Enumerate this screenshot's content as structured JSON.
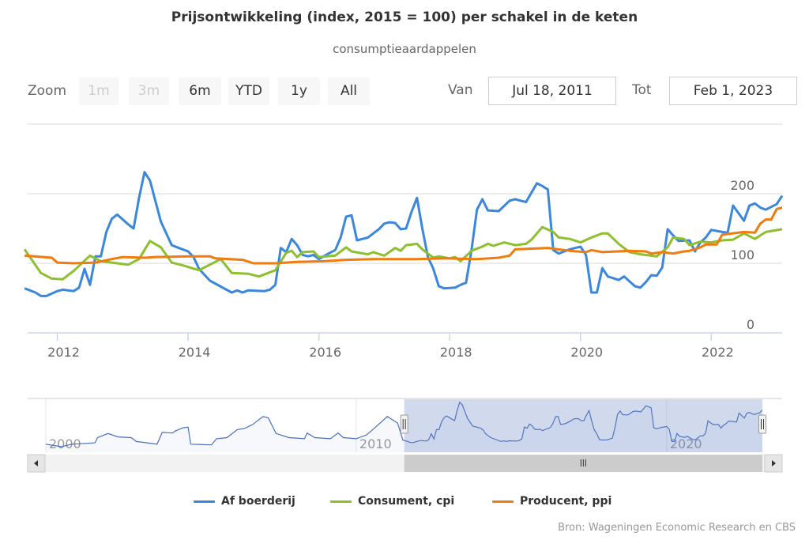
{
  "chart_data": {
    "type": "line",
    "title": "Prijsontwikkeling (index, 2015 = 100) per schakel in de keten",
    "subtitle": "consumptieaardappelen",
    "x_range": [
      "2011-07-18",
      "2023-02-01"
    ],
    "ylim": [
      0,
      300
    ],
    "y_ticks": [
      0,
      100,
      200
    ],
    "x_ticks": [
      "2012",
      "2014",
      "2016",
      "2018",
      "2020",
      "2022"
    ],
    "grid": true,
    "legend": "bottom",
    "series": [
      {
        "name": "Af boerderij",
        "color": "#3a87dc",
        "points": [
          [
            "2011-07",
            64
          ],
          [
            "2011-09",
            58
          ],
          [
            "2011-10",
            53
          ],
          [
            "2011-11",
            53
          ],
          [
            "2012-01",
            60
          ],
          [
            "2012-02",
            62
          ],
          [
            "2012-04",
            60
          ],
          [
            "2012-05",
            65
          ],
          [
            "2012-06",
            92
          ],
          [
            "2012-07",
            69
          ],
          [
            "2012-08",
            110
          ],
          [
            "2012-09",
            110
          ],
          [
            "2012-10",
            145
          ],
          [
            "2012-11",
            164
          ],
          [
            "2012-12",
            170
          ],
          [
            "2013-02",
            156
          ],
          [
            "2013-03",
            150
          ],
          [
            "2013-04",
            194
          ],
          [
            "2013-05",
            231
          ],
          [
            "2013-06",
            219
          ],
          [
            "2013-08",
            160
          ],
          [
            "2013-09",
            143
          ],
          [
            "2013-10",
            126
          ],
          [
            "2013-11",
            123
          ],
          [
            "2014-01",
            117
          ],
          [
            "2014-02",
            109
          ],
          [
            "2014-03",
            92
          ],
          [
            "2014-05",
            75
          ],
          [
            "2014-09",
            58
          ],
          [
            "2014-10",
            61
          ],
          [
            "2014-11",
            58
          ],
          [
            "2014-12",
            61
          ],
          [
            "2015-03",
            60
          ],
          [
            "2015-04",
            62
          ],
          [
            "2015-05",
            69
          ],
          [
            "2015-06",
            122
          ],
          [
            "2015-07",
            116
          ],
          [
            "2015-08",
            135
          ],
          [
            "2015-09",
            126
          ],
          [
            "2015-10",
            112
          ],
          [
            "2015-11",
            110
          ],
          [
            "2015-12",
            112
          ],
          [
            "2016-01",
            106
          ],
          [
            "2016-03",
            115
          ],
          [
            "2016-04",
            119
          ],
          [
            "2016-05",
            137
          ],
          [
            "2016-06",
            167
          ],
          [
            "2016-07",
            169
          ],
          [
            "2016-08",
            133
          ],
          [
            "2016-09",
            135
          ],
          [
            "2016-10",
            137
          ],
          [
            "2016-12",
            149
          ],
          [
            "2017-01",
            157
          ],
          [
            "2017-02",
            159
          ],
          [
            "2017-03",
            158
          ],
          [
            "2017-04",
            149
          ],
          [
            "2017-05",
            150
          ],
          [
            "2017-06",
            174
          ],
          [
            "2017-07",
            194
          ],
          [
            "2017-08",
            149
          ],
          [
            "2017-09",
            109
          ],
          [
            "2017-10",
            92
          ],
          [
            "2017-11",
            67
          ],
          [
            "2017-12",
            64
          ],
          [
            "2018-02",
            65
          ],
          [
            "2018-03",
            69
          ],
          [
            "2018-04",
            72
          ],
          [
            "2018-05",
            119
          ],
          [
            "2018-06",
            177
          ],
          [
            "2018-07",
            192
          ],
          [
            "2018-08",
            176
          ],
          [
            "2018-10",
            175
          ],
          [
            "2018-12",
            190
          ],
          [
            "2019-01",
            192
          ],
          [
            "2019-03",
            188
          ],
          [
            "2019-05",
            215
          ],
          [
            "2019-06",
            211
          ],
          [
            "2019-07",
            206
          ],
          [
            "2019-08",
            119
          ],
          [
            "2019-09",
            114
          ],
          [
            "2019-11",
            120
          ],
          [
            "2020-01",
            124
          ],
          [
            "2020-02",
            112
          ],
          [
            "2020-03",
            58
          ],
          [
            "2020-04",
            58
          ],
          [
            "2020-05",
            93
          ],
          [
            "2020-06",
            81
          ],
          [
            "2020-08",
            76
          ],
          [
            "2020-09",
            81
          ],
          [
            "2020-10",
            74
          ],
          [
            "2020-11",
            67
          ],
          [
            "2020-12",
            65
          ],
          [
            "2021-01",
            73
          ],
          [
            "2021-02",
            83
          ],
          [
            "2021-03",
            82
          ],
          [
            "2021-04",
            94
          ],
          [
            "2021-05",
            149
          ],
          [
            "2021-06",
            140
          ],
          [
            "2021-07",
            132
          ],
          [
            "2021-09",
            133
          ],
          [
            "2021-10",
            117
          ],
          [
            "2021-11",
            130
          ],
          [
            "2021-12",
            137
          ],
          [
            "2022-01",
            148
          ],
          [
            "2022-03",
            145
          ],
          [
            "2022-04",
            144
          ],
          [
            "2022-05",
            183
          ],
          [
            "2022-07",
            161
          ],
          [
            "2022-08",
            183
          ],
          [
            "2022-09",
            186
          ],
          [
            "2022-10",
            180
          ],
          [
            "2022-11",
            177
          ],
          [
            "2023-01",
            185
          ],
          [
            "2023-02",
            197
          ]
        ]
      },
      {
        "name": "Consument, cpi",
        "color": "#8dbf2e",
        "points": [
          [
            "2011-07",
            120
          ],
          [
            "2011-10",
            86
          ],
          [
            "2011-12",
            78
          ],
          [
            "2012-02",
            77
          ],
          [
            "2012-04",
            89
          ],
          [
            "2012-07",
            111
          ],
          [
            "2012-09",
            103
          ],
          [
            "2012-12",
            100
          ],
          [
            "2013-02",
            98
          ],
          [
            "2013-04",
            106
          ],
          [
            "2013-06",
            132
          ],
          [
            "2013-08",
            123
          ],
          [
            "2013-10",
            101
          ],
          [
            "2013-12",
            97
          ],
          [
            "2014-03",
            90
          ],
          [
            "2014-07",
            106
          ],
          [
            "2014-09",
            86
          ],
          [
            "2014-12",
            85
          ],
          [
            "2015-02",
            81
          ],
          [
            "2015-05",
            90
          ],
          [
            "2015-07",
            115
          ],
          [
            "2015-08",
            118
          ],
          [
            "2015-09",
            109
          ],
          [
            "2015-10",
            116
          ],
          [
            "2015-12",
            117
          ],
          [
            "2016-01",
            109
          ],
          [
            "2016-04",
            111
          ],
          [
            "2016-06",
            123
          ],
          [
            "2016-07",
            117
          ],
          [
            "2016-10",
            113
          ],
          [
            "2016-11",
            116
          ],
          [
            "2017-01",
            111
          ],
          [
            "2017-03",
            122
          ],
          [
            "2017-04",
            118
          ],
          [
            "2017-05",
            126
          ],
          [
            "2017-07",
            128
          ],
          [
            "2017-08",
            120
          ],
          [
            "2017-10",
            108
          ],
          [
            "2017-11",
            110
          ],
          [
            "2018-01",
            107
          ],
          [
            "2018-02",
            109
          ],
          [
            "2018-03",
            103
          ],
          [
            "2018-05",
            118
          ],
          [
            "2018-07",
            124
          ],
          [
            "2018-08",
            128
          ],
          [
            "2018-09",
            125
          ],
          [
            "2018-11",
            130
          ],
          [
            "2019-01",
            126
          ],
          [
            "2019-03",
            128
          ],
          [
            "2019-04",
            134
          ],
          [
            "2019-06",
            152
          ],
          [
            "2019-08",
            145
          ],
          [
            "2019-09",
            137
          ],
          [
            "2019-11",
            135
          ],
          [
            "2020-01",
            130
          ],
          [
            "2020-03",
            137
          ],
          [
            "2020-05",
            143
          ],
          [
            "2020-06",
            143
          ],
          [
            "2020-08",
            128
          ],
          [
            "2020-10",
            116
          ],
          [
            "2020-12",
            113
          ],
          [
            "2021-03",
            110
          ],
          [
            "2021-05",
            123
          ],
          [
            "2021-06",
            137
          ],
          [
            "2021-08",
            135
          ],
          [
            "2021-09",
            126
          ],
          [
            "2021-11",
            131
          ],
          [
            "2022-01",
            130
          ],
          [
            "2022-03",
            133
          ],
          [
            "2022-05",
            134
          ],
          [
            "2022-07",
            143
          ],
          [
            "2022-09",
            135
          ],
          [
            "2022-11",
            145
          ],
          [
            "2023-02",
            149
          ]
        ]
      },
      {
        "name": "Producent, ppi",
        "color": "#f07b0f",
        "points": [
          [
            "2011-07",
            111
          ],
          [
            "2011-12",
            108
          ],
          [
            "2012-01",
            101
          ],
          [
            "2012-04",
            100
          ],
          [
            "2012-08",
            101
          ],
          [
            "2012-11",
            106
          ],
          [
            "2013-01",
            109
          ],
          [
            "2013-05",
            108
          ],
          [
            "2013-07",
            109
          ],
          [
            "2014-01",
            110
          ],
          [
            "2014-05",
            110
          ],
          [
            "2014-06",
            107
          ],
          [
            "2014-11",
            105
          ],
          [
            "2015-01",
            100
          ],
          [
            "2015-05",
            100
          ],
          [
            "2015-09",
            102
          ],
          [
            "2016-02",
            103
          ],
          [
            "2016-06",
            105
          ],
          [
            "2016-11",
            106
          ],
          [
            "2017-07",
            106
          ],
          [
            "2017-12",
            107
          ],
          [
            "2018-06",
            106
          ],
          [
            "2018-10",
            108
          ],
          [
            "2018-12",
            111
          ],
          [
            "2019-01",
            120
          ],
          [
            "2019-07",
            122
          ],
          [
            "2019-11",
            118
          ],
          [
            "2020-02",
            116
          ],
          [
            "2020-03",
            119
          ],
          [
            "2020-05",
            116
          ],
          [
            "2020-10",
            118
          ],
          [
            "2021-01",
            117
          ],
          [
            "2021-02",
            114
          ],
          [
            "2021-04",
            116
          ],
          [
            "2021-06",
            114
          ],
          [
            "2021-08",
            117
          ],
          [
            "2021-09",
            118
          ],
          [
            "2021-11",
            123
          ],
          [
            "2021-12",
            127
          ],
          [
            "2022-02",
            127
          ],
          [
            "2022-03",
            141
          ],
          [
            "2022-07",
            145
          ],
          [
            "2022-09",
            144
          ],
          [
            "2022-10",
            157
          ],
          [
            "2022-11",
            163
          ],
          [
            "2022-12",
            163
          ],
          [
            "2023-01",
            178
          ],
          [
            "2023-02",
            180
          ]
        ]
      }
    ],
    "navigator": {
      "x_range": [
        "2000-01",
        "2023-02"
      ],
      "x_ticks": [
        "2000",
        "2010",
        "2020"
      ],
      "selected": [
        "2011-07-18",
        "2023-02-01"
      ],
      "series_color": "#4a6fbf",
      "points_before_range": [
        [
          "2000-01",
          46
        ],
        [
          "2000-07",
          35
        ],
        [
          "2000-11",
          46
        ],
        [
          "2001-08",
          52
        ],
        [
          "2001-09",
          75
        ],
        [
          "2002-01",
          93
        ],
        [
          "2002-05",
          78
        ],
        [
          "2002-10",
          75
        ],
        [
          "2002-12",
          58
        ],
        [
          "2003-06",
          49
        ],
        [
          "2003-08",
          46
        ],
        [
          "2003-10",
          98
        ],
        [
          "2004-02",
          95
        ],
        [
          "2004-03",
          104
        ],
        [
          "2004-06",
          118
        ],
        [
          "2004-08",
          121
        ],
        [
          "2004-09",
          46
        ],
        [
          "2005-05",
          43
        ],
        [
          "2005-07",
          70
        ],
        [
          "2005-11",
          75
        ],
        [
          "2006-03",
          110
        ],
        [
          "2006-06",
          116
        ],
        [
          "2006-09",
          133
        ],
        [
          "2007-01",
          168
        ],
        [
          "2007-03",
          162
        ],
        [
          "2007-06",
          93
        ],
        [
          "2007-11",
          75
        ],
        [
          "2008-05",
          70
        ],
        [
          "2008-06",
          95
        ],
        [
          "2008-09",
          75
        ],
        [
          "2009-03",
          70
        ],
        [
          "2009-06",
          95
        ],
        [
          "2009-08",
          75
        ],
        [
          "2010-01",
          70
        ],
        [
          "2010-05",
          87
        ],
        [
          "2010-08",
          116
        ],
        [
          "2011-01",
          168
        ],
        [
          "2011-05",
          139
        ]
      ]
    }
  },
  "range_selector": {
    "zoom_label": "Zoom",
    "buttons": [
      {
        "label": "1m",
        "enabled": false
      },
      {
        "label": "3m",
        "enabled": false
      },
      {
        "label": "6m",
        "enabled": true
      },
      {
        "label": "YTD",
        "enabled": true
      },
      {
        "label": "1y",
        "enabled": true
      },
      {
        "label": "All",
        "enabled": true
      }
    ],
    "from_label": "Van",
    "from_value": "Jul 18, 2011",
    "to_label": "Tot",
    "to_value": "Feb 1, 2023"
  },
  "credits": "Bron: Wageningen Economic Research en CBS",
  "icons": {
    "scroll_left": "arrow-left-icon",
    "scroll_right": "arrow-right-icon",
    "grip": "grip-icon"
  }
}
